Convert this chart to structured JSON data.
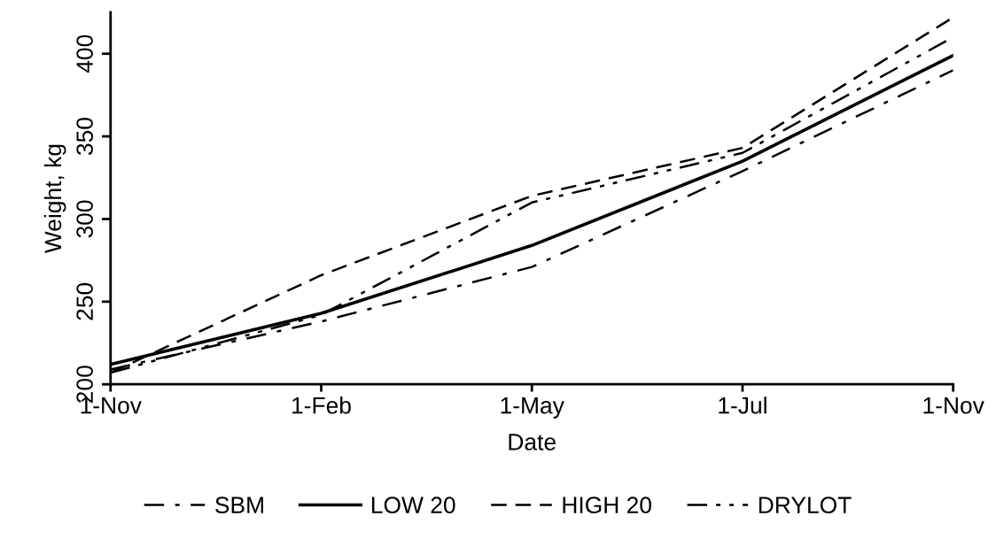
{
  "chart_data": {
    "type": "line",
    "xlabel": "Date",
    "ylabel": "Weight, kg",
    "categories": [
      "1-Nov",
      "1-Feb",
      "1-May",
      "1-Jul",
      "1-Nov"
    ],
    "series": [
      {
        "name": "SBM",
        "color": "#000000",
        "line_style": "dashdot",
        "values": [
          209,
          238,
          271,
          329,
          390
        ]
      },
      {
        "name": "LOW 20",
        "color": "#000000",
        "line_style": "solid",
        "values": [
          212,
          243,
          284,
          335,
          399
        ]
      },
      {
        "name": "HIGH 20",
        "color": "#000000",
        "line_style": "dashed",
        "values": [
          207,
          266,
          314,
          343,
          422
        ]
      },
      {
        "name": "DRYLOT",
        "color": "#000000",
        "line_style": "dashdotdot",
        "values": [
          207,
          242,
          310,
          340,
          410
        ]
      }
    ],
    "ylim": [
      200,
      425
    ],
    "yticks": [
      200,
      250,
      300,
      350,
      400
    ],
    "grid": false,
    "legend": "bottom",
    "marker": "none"
  }
}
